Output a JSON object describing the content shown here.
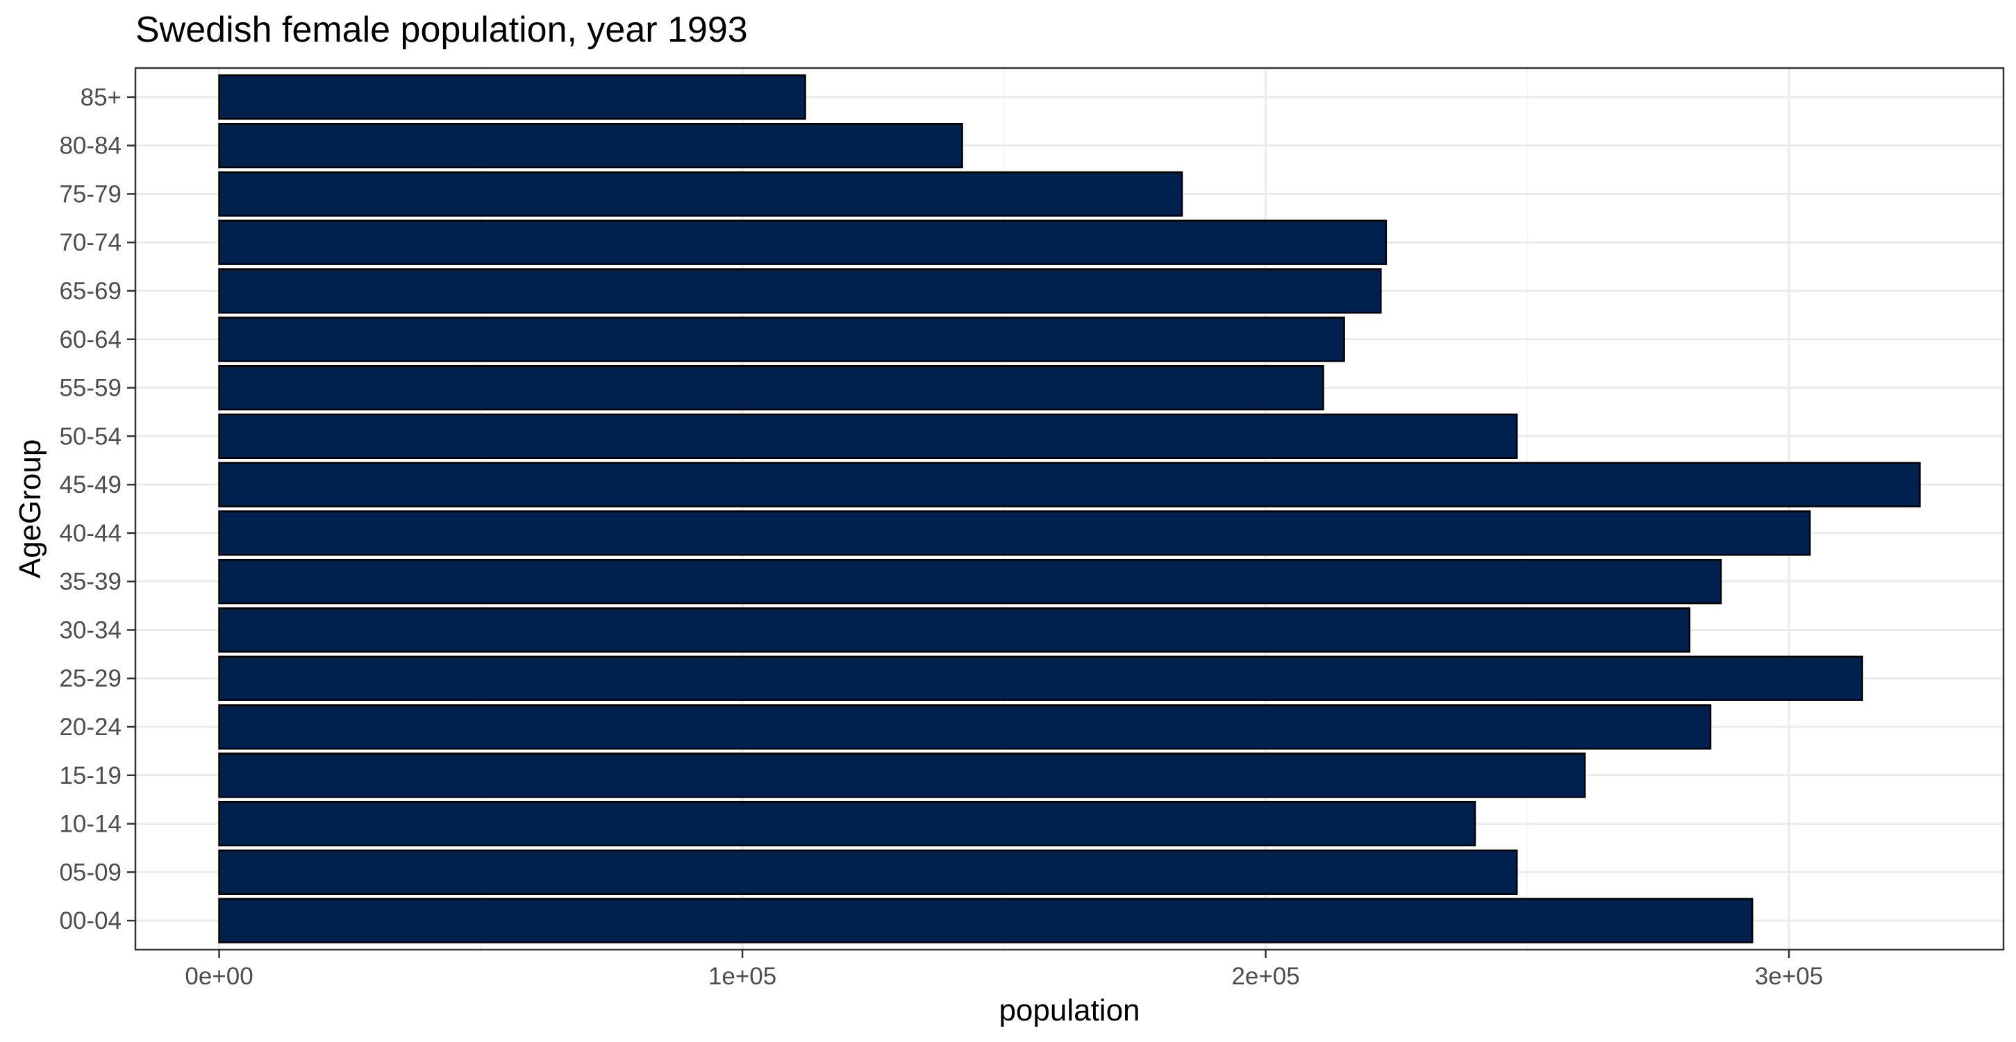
{
  "chart_data": {
    "type": "bar",
    "orientation": "horizontal",
    "title": "Swedish female population, year 1993",
    "xlabel": "population",
    "ylabel": "AgeGroup",
    "categories": [
      "00-04",
      "05-09",
      "10-14",
      "15-19",
      "20-24",
      "25-29",
      "30-34",
      "35-39",
      "40-44",
      "45-49",
      "50-54",
      "55-59",
      "60-64",
      "65-69",
      "70-74",
      "75-79",
      "80-84",
      "85+"
    ],
    "values": [
      293000,
      248000,
      240000,
      261000,
      285000,
      314000,
      281000,
      287000,
      304000,
      325000,
      248000,
      211000,
      215000,
      222000,
      223000,
      184000,
      142000,
      112000
    ],
    "xlim": [
      -16000,
      341000
    ],
    "x_ticks": [
      {
        "value": 0,
        "label": "0e+00"
      },
      {
        "value": 100000,
        "label": "1e+05"
      },
      {
        "value": 200000,
        "label": "2e+05"
      },
      {
        "value": 300000,
        "label": "3e+05"
      }
    ],
    "grid": true,
    "legend": "none",
    "colors": {
      "bar_fill": "#00204d",
      "bar_stroke": "#000000",
      "grid_major": "#ebebeb",
      "grid_minor": "#f5f5f5",
      "panel_border": "#333333",
      "tick_label": "#4d4d4d"
    }
  }
}
